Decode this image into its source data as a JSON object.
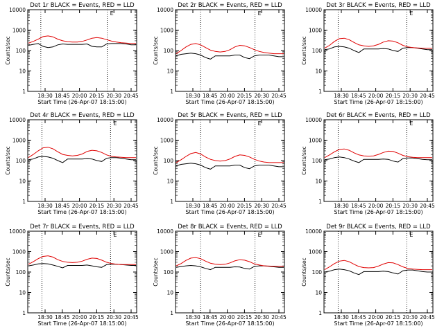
{
  "figure": {
    "tick_labels": [
      "18:30",
      "18:45",
      "20:00",
      "20:15",
      "20:30",
      "20:45"
    ],
    "y_tick_labels": [
      "1",
      "10",
      "100",
      "1000",
      "10000"
    ],
    "ylabel": "Counts/sec",
    "xlabel": "Start Time (26-Apr-07 18:15:00)",
    "marker": "E"
  },
  "colors": {
    "events": "#000000",
    "lld": "#e00000",
    "axes": "#000000"
  },
  "chart_data": [
    {
      "type": "line",
      "title": "Det 1r BLACK = Events, RED = LLD",
      "xlabel": "Start Time (26-Apr-07 18:15:00)",
      "ylabel": "Counts/sec",
      "yscale": "log",
      "ylim": [
        1,
        10000
      ],
      "x_ticks": [
        "18:30",
        "18:45",
        "20:00",
        "20:15",
        "20:30",
        "20:45"
      ],
      "vlines": [
        0.12,
        0.73
      ],
      "series": [
        {
          "name": "BLACK",
          "color": "#000000",
          "values": [
            180,
            200,
            220,
            160,
            140,
            150,
            190,
            210,
            200,
            200,
            200,
            200,
            210,
            160,
            150,
            150,
            210,
            220,
            220,
            220,
            210,
            190,
            190
          ]
        },
        {
          "name": "RED",
          "color": "#e00000",
          "values": [
            230,
            280,
            360,
            480,
            520,
            470,
            360,
            300,
            270,
            260,
            260,
            280,
            330,
            400,
            430,
            400,
            340,
            290,
            260,
            240,
            230,
            220,
            220
          ]
        }
      ]
    },
    {
      "type": "line",
      "title": "Det 2r BLACK = Events, RED = LLD",
      "xlabel": "Start Time (26-Apr-07 18:15:00)",
      "ylabel": "Counts/sec",
      "yscale": "log",
      "ylim": [
        1,
        10000
      ],
      "x_ticks": [
        "18:30",
        "18:45",
        "20:00",
        "20:15",
        "20:30",
        "20:45"
      ],
      "vlines": [
        0.23,
        0.73
      ],
      "series": [
        {
          "name": "BLACK",
          "color": "#000000",
          "values": [
            55,
            65,
            70,
            75,
            70,
            60,
            45,
            38,
            55,
            55,
            55,
            55,
            60,
            60,
            45,
            40,
            55,
            60,
            60,
            60,
            55,
            50,
            50
          ]
        },
        {
          "name": "RED",
          "color": "#e00000",
          "values": [
            70,
            100,
            150,
            200,
            220,
            190,
            140,
            105,
            90,
            85,
            90,
            110,
            150,
            180,
            170,
            140,
            110,
            90,
            80,
            75,
            70,
            70,
            70
          ]
        }
      ]
    },
    {
      "type": "line",
      "title": "Det 3r BLACK = Events, RED = LLD",
      "xlabel": "Start Time (26-Apr-07 18:15:00)",
      "ylabel": "Counts/sec",
      "yscale": "log",
      "ylim": [
        1,
        10000
      ],
      "x_ticks": [
        "18:30",
        "18:45",
        "20:00",
        "20:15",
        "20:30",
        "20:45"
      ],
      "vlines": [
        0.13,
        0.76
      ],
      "series": [
        {
          "name": "BLACK",
          "color": "#000000",
          "values": [
            110,
            120,
            150,
            160,
            150,
            130,
            100,
            80,
            120,
            120,
            120,
            120,
            125,
            120,
            100,
            90,
            130,
            140,
            140,
            130,
            120,
            110,
            110
          ]
        },
        {
          "name": "RED",
          "color": "#e00000",
          "values": [
            130,
            180,
            280,
            380,
            400,
            340,
            250,
            190,
            170,
            160,
            170,
            200,
            260,
            300,
            290,
            240,
            180,
            150,
            140,
            135,
            130,
            130,
            130
          ]
        }
      ]
    },
    {
      "type": "line",
      "title": "Det 4r BLACK = Events, RED = LLD",
      "xlabel": "Start Time (26-Apr-07 18:15:00)",
      "ylabel": "Counts/sec",
      "yscale": "log",
      "ylim": [
        1,
        10000
      ],
      "x_ticks": [
        "18:30",
        "18:45",
        "20:00",
        "20:15",
        "20:30",
        "20:45"
      ],
      "vlines": [
        0.13,
        0.76
      ],
      "series": [
        {
          "name": "BLACK",
          "color": "#000000",
          "values": [
            110,
            120,
            150,
            160,
            150,
            130,
            100,
            80,
            120,
            120,
            120,
            120,
            125,
            120,
            100,
            90,
            130,
            140,
            140,
            130,
            120,
            110,
            110
          ]
        },
        {
          "name": "RED",
          "color": "#e00000",
          "values": [
            140,
            200,
            300,
            420,
            450,
            380,
            270,
            200,
            180,
            170,
            180,
            210,
            280,
            320,
            300,
            250,
            190,
            160,
            150,
            145,
            140,
            140,
            140
          ]
        }
      ]
    },
    {
      "type": "line",
      "title": "Det 5r BLACK = Events, RED = LLD",
      "xlabel": "Start Time (26-Apr-07 18:15:00)",
      "ylabel": "Counts/sec",
      "yscale": "log",
      "ylim": [
        1,
        10000
      ],
      "x_ticks": [
        "18:30",
        "18:45",
        "20:00",
        "20:15",
        "20:30",
        "20:45"
      ],
      "vlines": [
        0.23,
        0.73
      ],
      "series": [
        {
          "name": "BLACK",
          "color": "#000000",
          "values": [
            55,
            65,
            70,
            75,
            70,
            60,
            45,
            38,
            55,
            55,
            55,
            55,
            60,
            60,
            45,
            40,
            55,
            60,
            60,
            60,
            55,
            50,
            50
          ]
        },
        {
          "name": "RED",
          "color": "#e00000",
          "values": [
            80,
            110,
            160,
            220,
            250,
            210,
            150,
            115,
            100,
            95,
            100,
            120,
            160,
            190,
            180,
            150,
            115,
            95,
            85,
            80,
            80,
            80,
            80
          ]
        }
      ]
    },
    {
      "type": "line",
      "title": "Det 6r BLACK = Events, RED = LLD",
      "xlabel": "Start Time (26-Apr-07 18:15:00)",
      "ylabel": "Counts/sec",
      "yscale": "log",
      "ylim": [
        1,
        10000
      ],
      "x_ticks": [
        "18:30",
        "18:45",
        "20:00",
        "20:15",
        "20:30",
        "20:45"
      ],
      "vlines": [
        0.13,
        0.76
      ],
      "series": [
        {
          "name": "BLACK",
          "color": "#000000",
          "values": [
            110,
            120,
            140,
            150,
            140,
            120,
            95,
            80,
            115,
            115,
            115,
            115,
            120,
            115,
            95,
            85,
            125,
            135,
            135,
            125,
            115,
            110,
            110
          ]
        },
        {
          "name": "RED",
          "color": "#e00000",
          "values": [
            140,
            190,
            270,
            350,
            370,
            320,
            240,
            190,
            170,
            165,
            170,
            200,
            250,
            290,
            280,
            230,
            180,
            155,
            145,
            140,
            140,
            140,
            140
          ]
        }
      ]
    },
    {
      "type": "line",
      "title": "Det 7r BLACK = Events, RED = LLD",
      "xlabel": "Start Time (26-Apr-07 18:15:00)",
      "ylabel": "Counts/sec",
      "yscale": "log",
      "ylim": [
        1,
        10000
      ],
      "x_ticks": [
        "18:30",
        "18:45",
        "20:00",
        "20:15",
        "20:30",
        "20:45"
      ],
      "vlines": [
        0.13,
        0.76
      ],
      "series": [
        {
          "name": "BLACK",
          "color": "#000000",
          "values": [
            200,
            220,
            250,
            260,
            250,
            220,
            190,
            160,
            210,
            210,
            210,
            210,
            220,
            200,
            180,
            170,
            230,
            240,
            240,
            230,
            220,
            210,
            210
          ]
        },
        {
          "name": "RED",
          "color": "#e00000",
          "values": [
            240,
            320,
            450,
            580,
            620,
            540,
            400,
            330,
            300,
            290,
            300,
            340,
            420,
            480,
            460,
            380,
            300,
            260,
            240,
            230,
            230,
            230,
            230
          ]
        }
      ]
    },
    {
      "type": "line",
      "title": "Det 8r BLACK = Events, RED = LLD",
      "xlabel": "Start Time (26-Apr-07 18:15:00)",
      "ylabel": "Counts/sec",
      "yscale": "log",
      "ylim": [
        1,
        10000
      ],
      "x_ticks": [
        "18:30",
        "18:45",
        "20:00",
        "20:15",
        "20:30",
        "20:45"
      ],
      "vlines": [
        0.23,
        0.73
      ],
      "series": [
        {
          "name": "BLACK",
          "color": "#000000",
          "values": [
            170,
            185,
            200,
            210,
            200,
            180,
            150,
            130,
            170,
            170,
            170,
            170,
            180,
            175,
            150,
            140,
            190,
            200,
            200,
            190,
            180,
            170,
            170
          ]
        },
        {
          "name": "RED",
          "color": "#e00000",
          "values": [
            200,
            260,
            370,
            480,
            510,
            450,
            340,
            270,
            240,
            230,
            240,
            280,
            350,
            400,
            380,
            320,
            250,
            220,
            200,
            195,
            190,
            190,
            190
          ]
        }
      ]
    },
    {
      "type": "line",
      "title": "Det 9r BLACK = Events, RED = LLD",
      "xlabel": "Start Time (26-Apr-07 18:15:00)",
      "ylabel": "Counts/sec",
      "yscale": "log",
      "ylim": [
        1,
        10000
      ],
      "x_ticks": [
        "18:30",
        "18:45",
        "20:00",
        "20:15",
        "20:30",
        "20:45"
      ],
      "vlines": [
        0.13,
        0.76
      ],
      "series": [
        {
          "name": "BLACK",
          "color": "#000000",
          "values": [
            100,
            110,
            130,
            140,
            130,
            115,
            90,
            75,
            105,
            105,
            105,
            105,
            110,
            105,
            90,
            80,
            115,
            125,
            125,
            115,
            105,
            100,
            100
          ]
        },
        {
          "name": "RED",
          "color": "#e00000",
          "values": [
            130,
            180,
            260,
            340,
            370,
            320,
            240,
            185,
            165,
            160,
            165,
            195,
            245,
            290,
            280,
            230,
            180,
            150,
            140,
            135,
            130,
            130,
            130
          ]
        }
      ]
    }
  ]
}
